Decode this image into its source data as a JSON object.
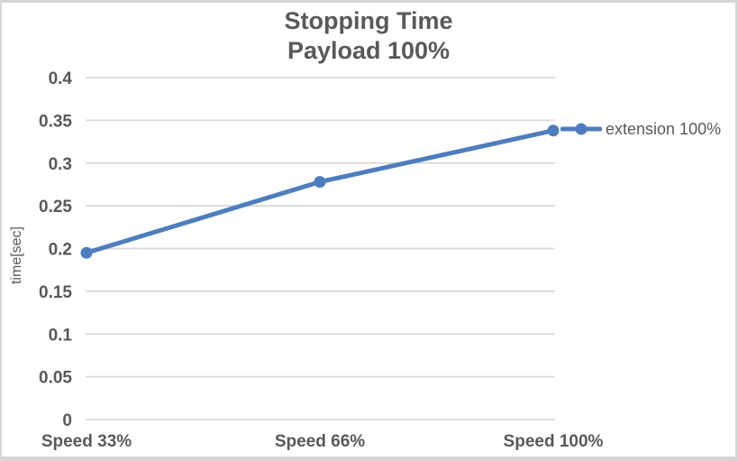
{
  "chart_data": {
    "type": "line",
    "title": "Stopping Time",
    "subtitle": "Payload 100%",
    "categories": [
      "Speed 33%",
      "Speed 66%",
      "Speed 100%"
    ],
    "series": [
      {
        "name": "extension 100%",
        "values": [
          0.195,
          0.278,
          0.338
        ]
      }
    ],
    "xlabel": "",
    "ylabel": "time[sec]",
    "ylim": [
      0,
      0.4
    ],
    "ytick_step": 0.05,
    "yticks": [
      "0",
      "0.05",
      "0.1",
      "0.15",
      "0.2",
      "0.25",
      "0.3",
      "0.35",
      "0.4"
    ],
    "grid": "horizontal",
    "legend_position": "right",
    "colors": {
      "line": "#4E7DBE",
      "grid": "#D9D9D9",
      "text": "#595959",
      "border": "#D6D6D6",
      "background": "#FFFFFF"
    }
  }
}
